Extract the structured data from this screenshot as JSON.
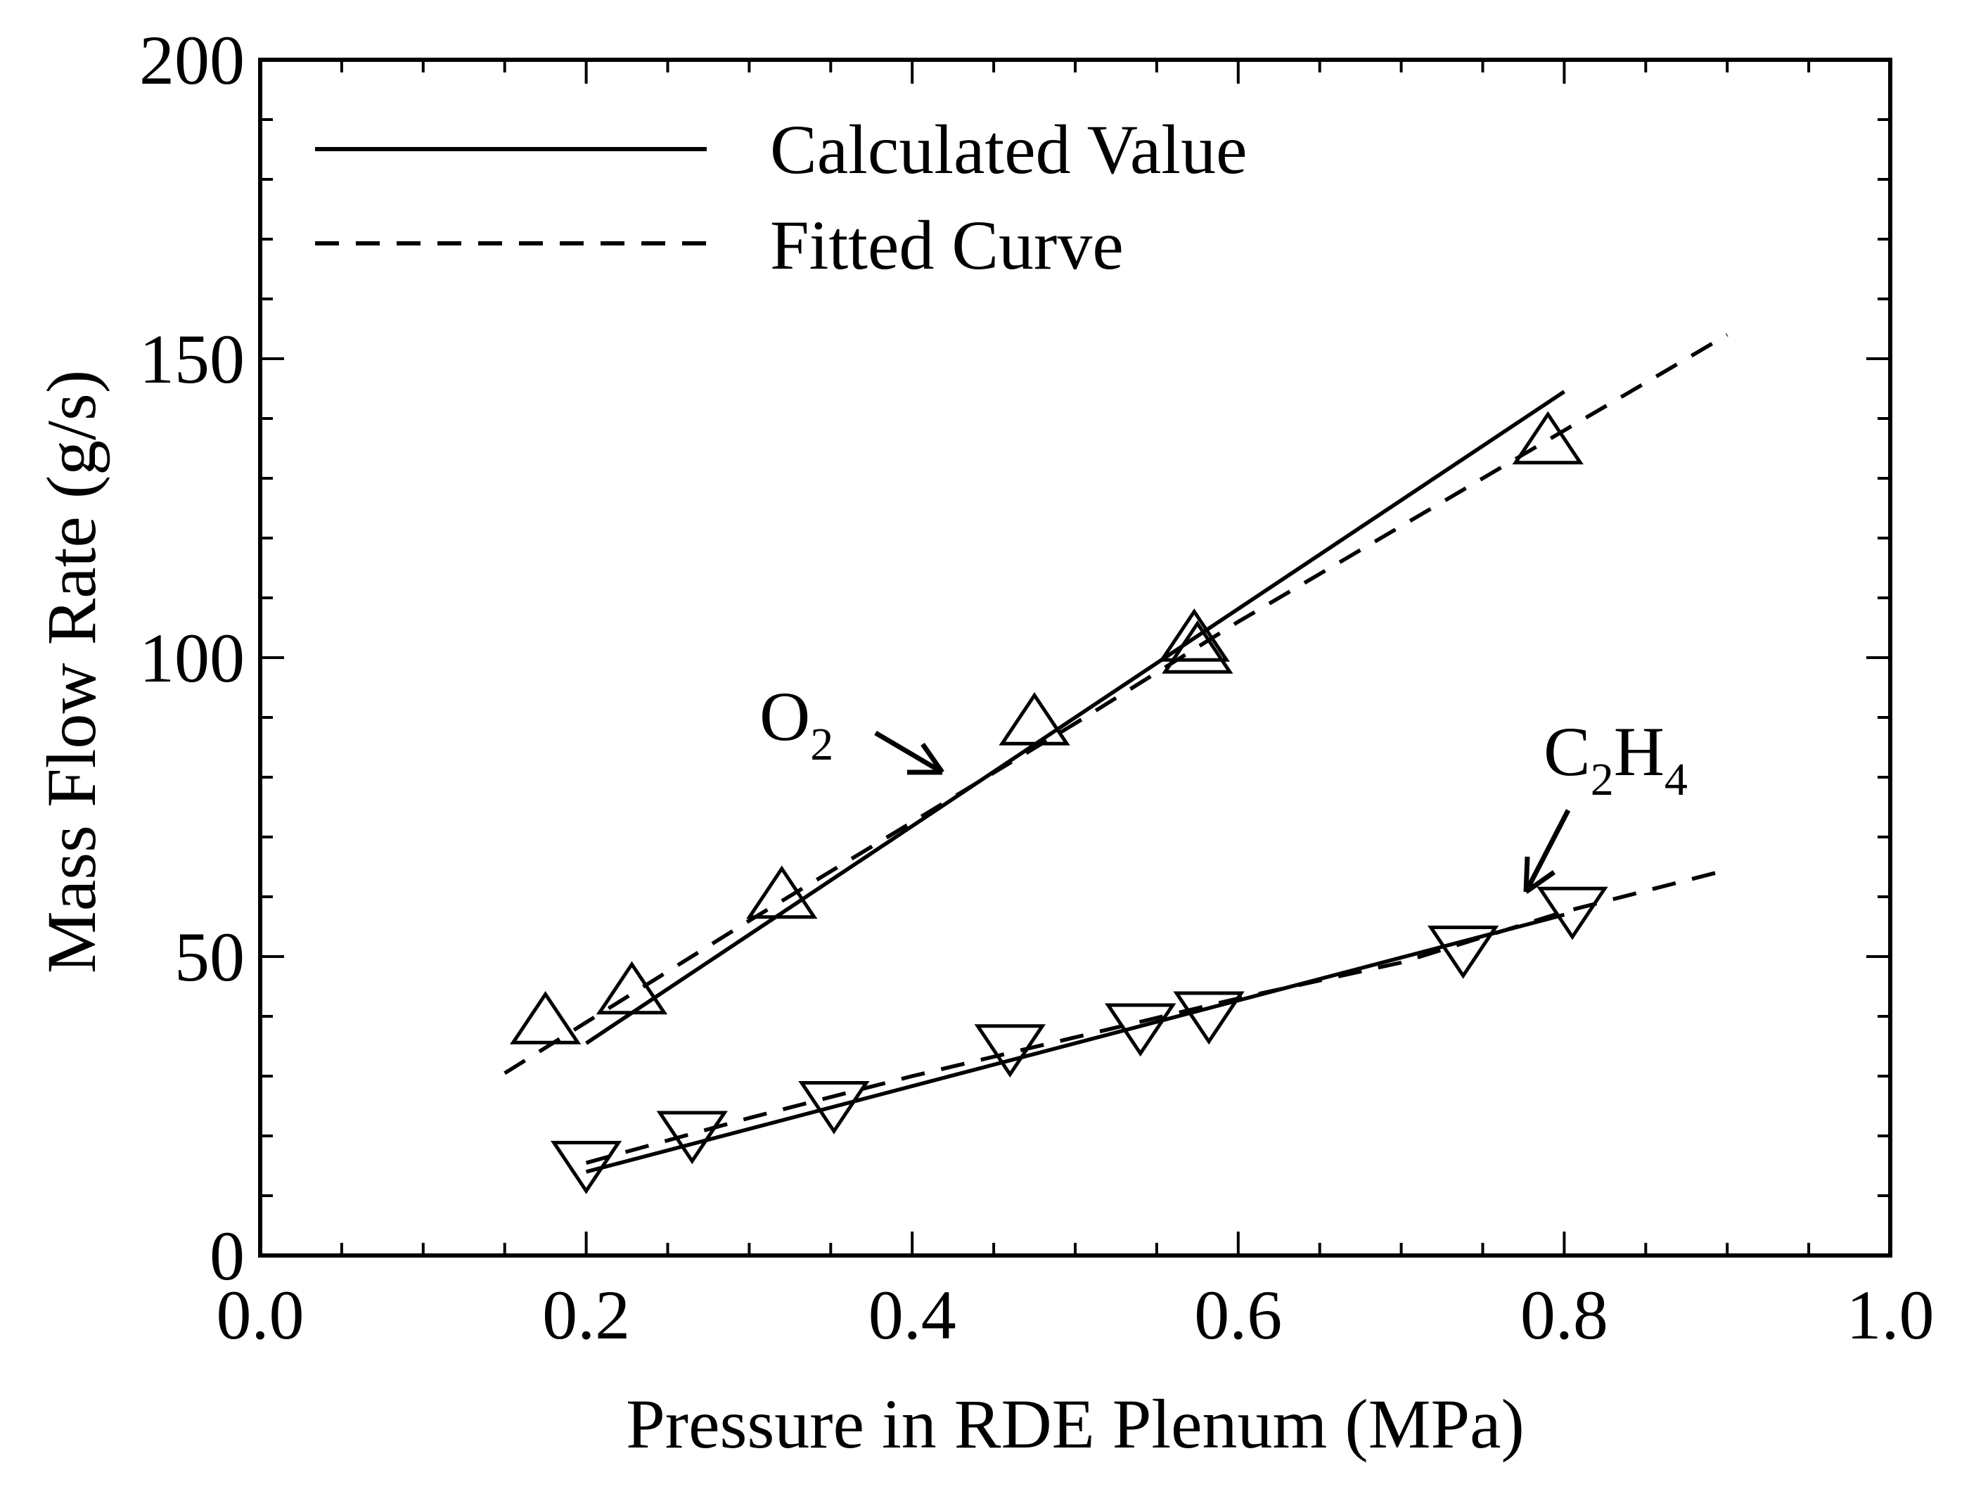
{
  "chart_data": {
    "type": "scatter",
    "title": "",
    "xlabel": "Pressure in RDE Plenum (MPa)",
    "ylabel": "Mass Flow Rate (g/s)",
    "xlim": [
      0.0,
      1.0
    ],
    "ylim": [
      0,
      200
    ],
    "x_ticks": [
      "0.0",
      "0.2",
      "0.4",
      "0.6",
      "0.8",
      "1.0"
    ],
    "y_ticks": [
      "0",
      "50",
      "100",
      "150",
      "200"
    ],
    "x_tick_values": [
      0.0,
      0.2,
      0.4,
      0.6,
      0.8,
      1.0
    ],
    "y_tick_values": [
      0,
      50,
      100,
      150,
      200
    ],
    "x_minor_step": 0.05,
    "y_minor_step": 10,
    "grid": false,
    "legend": {
      "placement": "top-left",
      "entries": [
        {
          "label": "Calculated Value",
          "style": "solid"
        },
        {
          "label": "Fitted Curve",
          "style": "dashed"
        }
      ]
    },
    "series": [
      {
        "key": "o2",
        "marker": "triangle-up",
        "measured": {
          "x": [
            0.175,
            0.228,
            0.32,
            0.475,
            0.573,
            0.575,
            0.79
          ],
          "y": [
            39,
            44,
            60,
            89,
            103,
            101,
            136
          ]
        },
        "calculated": {
          "x": [
            0.2,
            0.8
          ],
          "y": [
            35.5,
            144.5
          ]
        },
        "fitted": {
          "x": [
            0.15,
            0.2,
            0.3,
            0.4,
            0.5,
            0.6,
            0.7,
            0.8,
            0.9
          ],
          "y": [
            30.5,
            39,
            56,
            72.5,
            89,
            106,
            122,
            138,
            154
          ]
        }
      },
      {
        "key": "c2h4",
        "marker": "triangle-down",
        "measured": {
          "x": [
            0.2,
            0.265,
            0.352,
            0.46,
            0.54,
            0.582,
            0.738,
            0.805
          ],
          "y": [
            15.5,
            20.5,
            25.5,
            35,
            38.5,
            40.5,
            51.5,
            58
          ]
        },
        "calculated": {
          "x": [
            0.2,
            0.8
          ],
          "y": [
            14,
            57
          ]
        },
        "fitted": {
          "x": [
            0.2,
            0.3,
            0.4,
            0.5,
            0.6,
            0.7,
            0.8,
            0.9
          ],
          "y": [
            15.5,
            23,
            30,
            36.5,
            43,
            49,
            57.5,
            64.5
          ]
        }
      }
    ],
    "annotations": [
      {
        "key": "o2",
        "base": "O",
        "sub": "2"
      },
      {
        "key": "c2h4",
        "parts": [
          [
            "C",
            ""
          ],
          [
            "",
            "2"
          ],
          [
            "H",
            ""
          ],
          [
            "",
            "4"
          ]
        ]
      }
    ]
  }
}
